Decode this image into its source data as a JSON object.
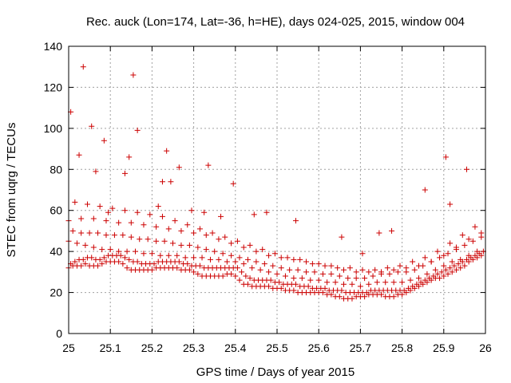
{
  "chart_data": {
    "type": "scatter",
    "title": "Rec. auck (Lon=174, Lat=-36, h=HE), days 024-025, 2015, window 004",
    "xlabel": "GPS time / Days of year 2015",
    "ylabel": "STEC from uqrg / TECUs",
    "xlim": [
      25,
      26
    ],
    "ylim": [
      0,
      140
    ],
    "xticks": [
      "25",
      "25.1",
      "25.2",
      "25.3",
      "25.4",
      "25.5",
      "25.6",
      "25.7",
      "25.8",
      "25.9",
      "26"
    ],
    "yticks": [
      "0",
      "20",
      "40",
      "60",
      "80",
      "100",
      "120",
      "140"
    ],
    "grid": true,
    "marker": "+",
    "color": "#cc0000",
    "series": [
      {
        "x": [
          25.0,
          25.01,
          25.02,
          25.03,
          25.04,
          25.05,
          25.06,
          25.07,
          25.08,
          25.09,
          25.1,
          25.11,
          25.12,
          25.13,
          25.14,
          25.15,
          25.16,
          25.17,
          25.18,
          25.19,
          25.2,
          25.21,
          25.22,
          25.23,
          25.24,
          25.25,
          25.26,
          25.27,
          25.28,
          25.29,
          25.3,
          25.31,
          25.32,
          25.33,
          25.34,
          25.35,
          25.36,
          25.37,
          25.38,
          25.39,
          25.4,
          25.41,
          25.42,
          25.43,
          25.44,
          25.45,
          25.46,
          25.47,
          25.48,
          25.49,
          25.5,
          25.51,
          25.52,
          25.53,
          25.54,
          25.55,
          25.56,
          25.57,
          25.58,
          25.59,
          25.6,
          25.61,
          25.62,
          25.63,
          25.64,
          25.65,
          25.66,
          25.67,
          25.68,
          25.69,
          25.7,
          25.71,
          25.72,
          25.73,
          25.74,
          25.75,
          25.76,
          25.77,
          25.78,
          25.79,
          25.8,
          25.81,
          25.82,
          25.83,
          25.84,
          25.85,
          25.86,
          25.87,
          25.88,
          25.89,
          25.9,
          25.91,
          25.92,
          25.93,
          25.94,
          25.95,
          25.96,
          25.97,
          25.98,
          25.99,
          25.005,
          25.015,
          25.025,
          25.035,
          25.045,
          25.055,
          25.065,
          25.075,
          25.085,
          25.095,
          25.105,
          25.115,
          25.125,
          25.135,
          25.145,
          25.155,
          25.165,
          25.175,
          25.185,
          25.195,
          25.205,
          25.215,
          25.225,
          25.235,
          25.245,
          25.255,
          25.265,
          25.275,
          25.285,
          25.295,
          25.305,
          25.315,
          25.325,
          25.335,
          25.345,
          25.355,
          25.365,
          25.375,
          25.385,
          25.395,
          25.405,
          25.415,
          25.425,
          25.435,
          25.445,
          25.455,
          25.465,
          25.475,
          25.485,
          25.495,
          25.505,
          25.515,
          25.525,
          25.535,
          25.545,
          25.555,
          25.565,
          25.575,
          25.585,
          25.595,
          25.605,
          25.615,
          25.625,
          25.635,
          25.645,
          25.655,
          25.665,
          25.675,
          25.685,
          25.695,
          25.705,
          25.715,
          25.725,
          25.735,
          25.745,
          25.755,
          25.765,
          25.775,
          25.785,
          25.795,
          25.805,
          25.815,
          25.825,
          25.835,
          25.845,
          25.855,
          25.865,
          25.875,
          25.885,
          25.895,
          25.905,
          25.915,
          25.925,
          25.935,
          25.945,
          25.955,
          25.965,
          25.975,
          25.985,
          25.995,
          25.0,
          25.02,
          25.04,
          25.06,
          25.08,
          25.1,
          25.12,
          25.14,
          25.16,
          25.18,
          25.2,
          25.22,
          25.24,
          25.26,
          25.28,
          25.3,
          25.32,
          25.34,
          25.36,
          25.38,
          25.4,
          25.42,
          25.44,
          25.46,
          25.48,
          25.5,
          25.52,
          25.54,
          25.56,
          25.58,
          25.6,
          25.62,
          25.64,
          25.66,
          25.68,
          25.7,
          25.72,
          25.74,
          25.76,
          25.78,
          25.8,
          25.82,
          25.84,
          25.86,
          25.88,
          25.9,
          25.92,
          25.94,
          25.96,
          25.98,
          25.01,
          25.03,
          25.05,
          25.07,
          25.09,
          25.11,
          25.13,
          25.15,
          25.17,
          25.19,
          25.21,
          25.23,
          25.25,
          25.27,
          25.29,
          25.31,
          25.33,
          25.35,
          25.37,
          25.39,
          25.41,
          25.43,
          25.45,
          25.47,
          25.49,
          25.51,
          25.53,
          25.55,
          25.57,
          25.59,
          25.61,
          25.63,
          25.65,
          25.67,
          25.69,
          25.71,
          25.73,
          25.75,
          25.77,
          25.79,
          25.81,
          25.83,
          25.85,
          25.87,
          25.89,
          25.91,
          25.93,
          25.95,
          25.97,
          25.99,
          25.0,
          25.03,
          25.06,
          25.09,
          25.12,
          25.15,
          25.18,
          25.21,
          25.24,
          25.27,
          25.3,
          25.33,
          25.36,
          25.39,
          25.42,
          25.45,
          25.48,
          25.51,
          25.54,
          25.57,
          25.6,
          25.63,
          25.66,
          25.69,
          25.72,
          25.75,
          25.78,
          25.81,
          25.84,
          25.87,
          25.9,
          25.93,
          25.96,
          25.99,
          25.015,
          25.045,
          25.075,
          25.105,
          25.135,
          25.165,
          25.195,
          25.225,
          25.255,
          25.285,
          25.315,
          25.345,
          25.375,
          25.405,
          25.435,
          25.465,
          25.495,
          25.525,
          25.555,
          25.585,
          25.615,
          25.645,
          25.675,
          25.705,
          25.735,
          25.765,
          25.795,
          25.825,
          25.855,
          25.885,
          25.915,
          25.945,
          25.975,
          25.005,
          25.025,
          25.035,
          25.055,
          25.065,
          25.085,
          25.095,
          25.135,
          25.145,
          25.155,
          25.165,
          25.215,
          25.225,
          25.235,
          25.245,
          25.265,
          25.295,
          25.325,
          25.335,
          25.365,
          25.395,
          25.445,
          25.475,
          25.545,
          25.655,
          25.705,
          25.745,
          25.775,
          25.855,
          25.905,
          25.915,
          25.955
        ],
        "y": [
          32,
          33,
          33,
          33,
          34,
          33,
          33,
          33,
          34,
          35,
          35,
          35,
          35,
          34,
          32,
          31,
          31,
          31,
          31,
          31,
          31,
          32,
          32,
          32,
          32,
          32,
          32,
          31,
          31,
          31,
          30,
          29,
          28,
          28,
          28,
          28,
          28,
          28,
          29,
          29,
          28,
          26,
          24,
          24,
          23,
          23,
          23,
          23,
          23,
          22,
          22,
          22,
          21,
          21,
          21,
          20,
          20,
          20,
          20,
          20,
          20,
          20,
          19,
          19,
          18,
          18,
          17,
          17,
          17,
          18,
          18,
          18,
          19,
          19,
          19,
          19,
          18,
          18,
          18,
          19,
          19,
          20,
          21,
          22,
          23,
          24,
          25,
          26,
          27,
          27,
          28,
          29,
          30,
          31,
          32,
          33,
          35,
          36,
          37,
          38,
          34,
          35,
          36,
          36,
          37,
          37,
          36,
          36,
          37,
          38,
          38,
          38,
          38,
          37,
          36,
          35,
          35,
          34,
          34,
          34,
          34,
          35,
          35,
          35,
          35,
          35,
          35,
          34,
          34,
          33,
          33,
          33,
          32,
          32,
          32,
          32,
          32,
          32,
          32,
          32,
          32,
          30,
          28,
          27,
          26,
          26,
          26,
          26,
          26,
          25,
          25,
          24,
          24,
          24,
          24,
          23,
          23,
          23,
          22,
          22,
          22,
          22,
          21,
          21,
          21,
          21,
          20,
          20,
          20,
          20,
          20,
          20,
          21,
          21,
          21,
          21,
          21,
          21,
          21,
          21,
          21,
          22,
          23,
          24,
          25,
          26,
          27,
          28,
          29,
          30,
          31,
          32,
          33,
          34,
          35,
          36,
          37,
          38,
          39,
          40,
          45,
          44,
          43,
          42,
          41,
          41,
          40,
          40,
          40,
          39,
          39,
          38,
          38,
          38,
          37,
          37,
          37,
          36,
          36,
          35,
          35,
          34,
          32,
          31,
          30,
          29,
          28,
          27,
          27,
          26,
          26,
          25,
          25,
          24,
          24,
          23,
          24,
          25,
          25,
          25,
          25,
          26,
          27,
          29,
          31,
          33,
          35,
          36,
          38,
          40,
          50,
          49,
          49,
          49,
          48,
          48,
          48,
          47,
          46,
          46,
          45,
          45,
          44,
          43,
          43,
          42,
          41,
          40,
          39,
          38,
          37,
          36,
          35,
          34,
          33,
          32,
          31,
          31,
          30,
          30,
          29,
          29,
          28,
          27,
          27,
          27,
          28,
          29,
          29,
          30,
          30,
          31,
          33,
          35,
          37,
          39,
          41,
          43,
          45,
          47,
          55,
          56,
          56,
          55,
          54,
          54,
          53,
          52,
          51,
          50,
          49,
          48,
          46,
          44,
          42,
          40,
          38,
          37,
          36,
          35,
          34,
          33,
          31,
          30,
          30,
          30,
          31,
          32,
          33,
          35,
          38,
          42,
          46,
          49,
          64,
          63,
          62,
          61,
          60,
          59,
          58,
          57,
          55,
          53,
          51,
          49,
          47,
          45,
          43,
          41,
          39,
          37,
          36,
          34,
          33,
          32,
          32,
          31,
          31,
          32,
          33,
          35,
          37,
          40,
          44,
          48,
          52,
          108,
          87,
          130,
          101,
          79,
          94,
          59,
          78,
          86,
          126,
          99,
          62,
          74,
          89,
          74,
          81,
          60,
          59,
          82,
          57,
          73,
          58,
          59,
          55,
          47,
          39,
          49,
          50,
          70,
          86,
          63,
          80
        ]
      }
    ]
  }
}
